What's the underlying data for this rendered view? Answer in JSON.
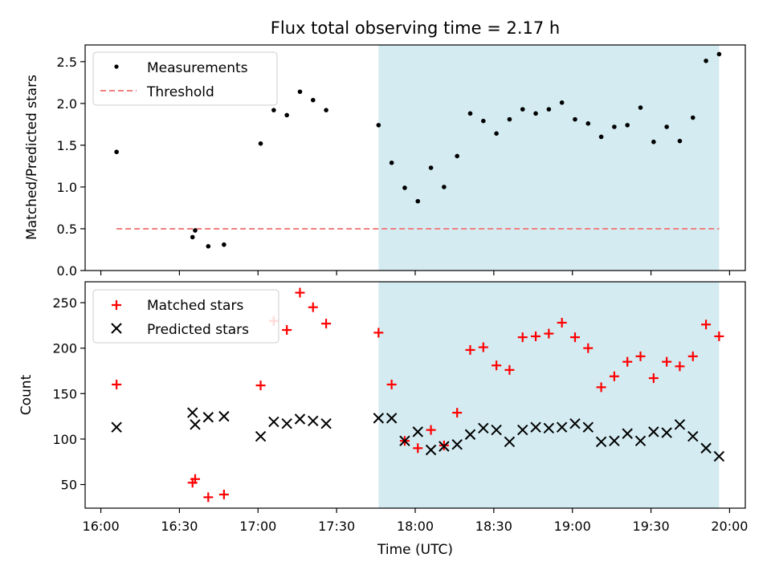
{
  "title": "Flux total observing time = 2.17 h",
  "chart_data": [
    {
      "type": "scatter",
      "ylabel": "Matched/Predicted stars",
      "ylim": [
        0,
        2.7
      ],
      "yticks": [
        "0.0",
        "0.5",
        "1.0",
        "1.5",
        "2.0",
        "2.5"
      ],
      "legend_position": "top-left",
      "threshold": {
        "name": "Threshold",
        "value": 0.5,
        "x_range": [
          "16:06",
          "19:56"
        ],
        "color": "#f08080"
      },
      "series": [
        {
          "name": "Measurements",
          "color": "#000000",
          "x": [
            "16:06",
            "16:35",
            "16:36",
            "16:41",
            "16:47",
            "17:01",
            "17:06",
            "17:11",
            "17:16",
            "17:21",
            "17:26",
            "17:46",
            "17:51",
            "17:56",
            "18:01",
            "18:06",
            "18:11",
            "18:16",
            "18:21",
            "18:26",
            "18:31",
            "18:36",
            "18:41",
            "18:46",
            "18:51",
            "18:56",
            "19:01",
            "19:06",
            "19:11",
            "19:16",
            "19:21",
            "19:26",
            "19:31",
            "19:36",
            "19:41",
            "19:46",
            "19:51",
            "19:56"
          ],
          "y": [
            1.42,
            0.4,
            0.48,
            0.29,
            0.31,
            1.52,
            1.92,
            1.86,
            2.14,
            2.04,
            1.92,
            1.74,
            1.29,
            0.99,
            0.83,
            1.23,
            1.0,
            1.37,
            1.88,
            1.79,
            1.64,
            1.81,
            1.93,
            1.88,
            1.93,
            2.01,
            1.81,
            1.76,
            1.6,
            1.72,
            1.74,
            1.95,
            1.54,
            1.72,
            1.55,
            1.83,
            2.51,
            2.59
          ]
        }
      ]
    },
    {
      "type": "scatter",
      "ylabel": "Count",
      "xlabel": "Time (UTC)",
      "ylim": [
        24,
        273
      ],
      "yticks": [
        "50",
        "100",
        "150",
        "200",
        "250"
      ],
      "xticks": [
        "16:00",
        "16:30",
        "17:00",
        "17:30",
        "18:00",
        "18:30",
        "19:00",
        "19:30",
        "20:00"
      ],
      "legend_position": "top-left",
      "series": [
        {
          "name": "Matched stars",
          "color": "#ff0000",
          "x": [
            "16:06",
            "16:35",
            "16:36",
            "16:41",
            "16:47",
            "17:01",
            "17:06",
            "17:11",
            "17:16",
            "17:21",
            "17:26",
            "17:46",
            "17:51",
            "17:56",
            "18:01",
            "18:06",
            "18:11",
            "18:16",
            "18:21",
            "18:26",
            "18:31",
            "18:36",
            "18:41",
            "18:46",
            "18:51",
            "18:56",
            "19:01",
            "19:06",
            "19:11",
            "19:16",
            "19:21",
            "19:26",
            "19:31",
            "19:36",
            "19:41",
            "19:46",
            "19:51",
            "19:56"
          ],
          "y": [
            160,
            52,
            56,
            36,
            39,
            159,
            230,
            220,
            261,
            245,
            227,
            217,
            160,
            98,
            90,
            110,
            93,
            129,
            198,
            201,
            181,
            176,
            212,
            213,
            216,
            228,
            212,
            200,
            157,
            169,
            185,
            191,
            167,
            185,
            180,
            191,
            226,
            213
          ]
        },
        {
          "name": "Predicted stars",
          "color": "#000000",
          "x": [
            "16:06",
            "16:35",
            "16:36",
            "16:41",
            "16:47",
            "17:01",
            "17:06",
            "17:11",
            "17:16",
            "17:21",
            "17:26",
            "17:46",
            "17:51",
            "17:56",
            "18:01",
            "18:06",
            "18:11",
            "18:16",
            "18:21",
            "18:26",
            "18:31",
            "18:36",
            "18:41",
            "18:46",
            "18:51",
            "18:56",
            "19:01",
            "19:06",
            "19:11",
            "19:16",
            "19:21",
            "19:26",
            "19:31",
            "19:36",
            "19:41",
            "19:46",
            "19:51",
            "19:56"
          ],
          "y": [
            113,
            129,
            116,
            124,
            125,
            103,
            119,
            117,
            122,
            120,
            117,
            123,
            123,
            98,
            108,
            88,
            92,
            94,
            105,
            112,
            110,
            97,
            110,
            113,
            112,
            113,
            117,
            113,
            97,
            98,
            106,
            98,
            108,
            107,
            116,
            103,
            90,
            81
          ]
        }
      ]
    }
  ],
  "shaded_region": {
    "start": "17:46",
    "end": "19:56",
    "color": "#d3ebf1"
  },
  "x_axis_range": [
    "15:54",
    "20:06"
  ]
}
